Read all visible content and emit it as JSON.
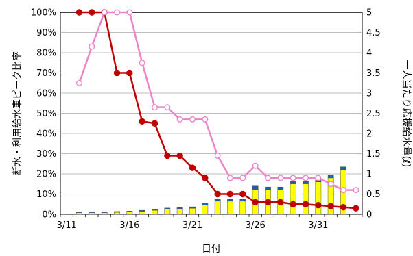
{
  "chart_data": {
    "type": "bar+line",
    "xlabel": "日付",
    "ylabel_left": "断水・利用給水車ピーク比率",
    "ylabel_right": "一人当たり応援給水量(ℓ)",
    "ylim_left": [
      0,
      100
    ],
    "ylim_right": [
      0,
      5
    ],
    "left_ticks": [
      "0%",
      "10%",
      "20%",
      "30%",
      "40%",
      "50%",
      "60%",
      "70%",
      "80%",
      "90%",
      "100%"
    ],
    "right_ticks": [
      "0",
      "0.5",
      "1",
      "1.5",
      "2",
      "2.5",
      "3",
      "3.5",
      "4",
      "4.5",
      "5"
    ],
    "x_ticks": [
      {
        "label": "3/11",
        "day": 0
      },
      {
        "label": "3/16",
        "day": 5
      },
      {
        "label": "3/21",
        "day": 10
      },
      {
        "label": "3/26",
        "day": 15
      },
      {
        "label": "3/31",
        "day": 20
      }
    ],
    "days": [
      1,
      2,
      3,
      4,
      5,
      6,
      7,
      8,
      9,
      10,
      11,
      12,
      13,
      14,
      15,
      16,
      17,
      18,
      19,
      20,
      21,
      22,
      23
    ],
    "bars_yellow": [
      0.8,
      0.8,
      0.8,
      1.0,
      1.2,
      1.5,
      2.0,
      2.5,
      2.8,
      3.0,
      4.5,
      6.5,
      6.5,
      6.5,
      12,
      12,
      12,
      15,
      15,
      16,
      18,
      22
    ],
    "bars_blue": [
      0.3,
      0.3,
      0.3,
      0.4,
      0.4,
      0.5,
      0.5,
      0.6,
      0.6,
      0.7,
      0.9,
      1.0,
      1.0,
      1.0,
      2.0,
      1.5,
      1.5,
      1.5,
      1.5,
      1.0,
      1.5,
      1.5
    ],
    "bar_colors": {
      "yellow": "#ffff00",
      "blue": "#1f5fa8",
      "outline": "#555555"
    },
    "series": [
      {
        "color": "#c00000",
        "marker": "filled",
        "values": [
          100,
          100,
          100,
          70,
          70,
          46,
          45,
          29,
          29,
          23,
          18,
          10,
          10,
          10,
          6,
          6,
          6,
          5,
          5,
          4.5,
          4,
          3.5,
          3
        ]
      },
      {
        "color": "#ee82c8",
        "marker": "open",
        "values": [
          65,
          83,
          100,
          100,
          100,
          75,
          53,
          53,
          47,
          47,
          47,
          29,
          18,
          18,
          24,
          18,
          18,
          18,
          18,
          18,
          15,
          12,
          12
        ]
      }
    ]
  }
}
